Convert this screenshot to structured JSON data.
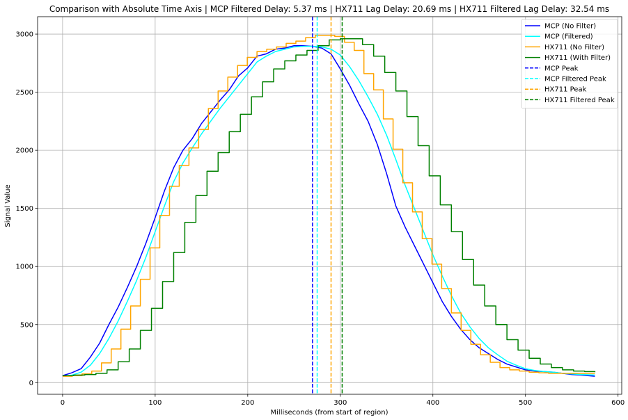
{
  "chart_data": {
    "type": "line",
    "title": "Comparison with Absolute Time Axis | MCP Filtered Delay: 5.37 ms | HX711 Lag Delay: 20.69 ms | HX711 Filtered Lag Delay: 32.54 ms",
    "xlabel": "Milliseconds (from start of region)",
    "ylabel": "Signal Value",
    "xlim": [
      -27,
      604
    ],
    "ylim": [
      -100,
      3150
    ],
    "xticks": [
      0,
      100,
      200,
      300,
      400,
      500,
      600
    ],
    "yticks": [
      0,
      500,
      1000,
      1500,
      2000,
      2500,
      3000
    ],
    "grid": true,
    "legend_position": "top-right",
    "series": [
      {
        "name": "MCP (No Filter)",
        "color": "#0000ff",
        "style": "solid",
        "x": [
          0,
          10,
          20,
          30,
          40,
          50,
          60,
          70,
          80,
          90,
          100,
          110,
          120,
          130,
          140,
          150,
          160,
          170,
          180,
          190,
          200,
          210,
          220,
          230,
          240,
          250,
          260,
          270,
          280,
          290,
          300,
          310,
          320,
          330,
          340,
          350,
          360,
          370,
          380,
          390,
          400,
          410,
          420,
          430,
          440,
          450,
          460,
          470,
          480,
          490,
          500,
          510,
          520,
          530,
          540,
          550,
          560,
          575
        ],
        "y": [
          60,
          85,
          120,
          220,
          340,
          500,
          650,
          820,
          1000,
          1200,
          1420,
          1650,
          1850,
          2000,
          2100,
          2230,
          2330,
          2430,
          2520,
          2640,
          2710,
          2810,
          2830,
          2870,
          2880,
          2900,
          2900,
          2895,
          2880,
          2830,
          2700,
          2560,
          2400,
          2250,
          2050,
          1800,
          1520,
          1340,
          1180,
          1020,
          860,
          700,
          570,
          460,
          370,
          300,
          250,
          200,
          160,
          135,
          110,
          100,
          95,
          90,
          80,
          70,
          65,
          55
        ]
      },
      {
        "name": "MCP (Filtered)",
        "color": "#00ffff",
        "style": "solid",
        "x": [
          0,
          10,
          20,
          30,
          40,
          50,
          60,
          70,
          80,
          90,
          100,
          110,
          120,
          130,
          140,
          150,
          160,
          170,
          180,
          190,
          200,
          210,
          220,
          230,
          240,
          250,
          260,
          270,
          280,
          290,
          300,
          310,
          320,
          330,
          340,
          350,
          360,
          370,
          380,
          390,
          400,
          410,
          420,
          430,
          440,
          450,
          460,
          470,
          480,
          490,
          500,
          510,
          520,
          530,
          540,
          550,
          560,
          575
        ],
        "y": [
          55,
          65,
          90,
          150,
          250,
          380,
          530,
          700,
          880,
          1080,
          1300,
          1520,
          1730,
          1890,
          2020,
          2140,
          2250,
          2360,
          2460,
          2560,
          2660,
          2760,
          2810,
          2850,
          2870,
          2890,
          2895,
          2895,
          2890,
          2870,
          2820,
          2720,
          2600,
          2460,
          2310,
          2130,
          1920,
          1700,
          1500,
          1300,
          1100,
          920,
          750,
          600,
          480,
          380,
          300,
          240,
          185,
          150,
          120,
          105,
          95,
          90,
          80,
          75,
          70,
          65
        ]
      },
      {
        "name": "HX711 (No Filter)",
        "color": "#ffa500",
        "style": "step",
        "x": [
          0,
          10.5,
          21,
          31.5,
          42,
          52.5,
          63,
          73.5,
          84,
          94.5,
          105,
          115.5,
          126,
          136.5,
          147,
          157.5,
          168,
          178.5,
          189,
          199.5,
          210,
          220.5,
          231,
          241.5,
          252,
          262.5,
          273,
          283.5,
          294,
          304.5,
          315,
          325.5,
          336,
          346.5,
          357,
          367.5,
          378,
          388.5,
          399,
          409.5,
          420,
          430.5,
          441,
          451.5,
          462,
          472.5,
          483,
          493.5,
          504,
          514.5,
          525,
          535.5,
          546,
          556.5,
          567,
          575
        ],
        "y": [
          55,
          60,
          75,
          100,
          170,
          290,
          460,
          660,
          890,
          1160,
          1440,
          1690,
          1870,
          2020,
          2180,
          2360,
          2510,
          2630,
          2730,
          2800,
          2850,
          2870,
          2890,
          2920,
          2940,
          2970,
          2990,
          2990,
          2980,
          2930,
          2860,
          2660,
          2520,
          2270,
          2010,
          1720,
          1470,
          1240,
          1020,
          810,
          600,
          450,
          330,
          240,
          175,
          130,
          110,
          100,
          90,
          85,
          80,
          80,
          80,
          80,
          80,
          80
        ]
      },
      {
        "name": "HX711 (With Filter)",
        "color": "#008000",
        "style": "step",
        "x": [
          0,
          12,
          24,
          36,
          48,
          60,
          72,
          84,
          96,
          108,
          120,
          132,
          144,
          156,
          168,
          180,
          192,
          204,
          216,
          228,
          240,
          252,
          264,
          276,
          288,
          300,
          312,
          324,
          336,
          348,
          360,
          372,
          384,
          396,
          408,
          420,
          432,
          444,
          456,
          468,
          480,
          492,
          504,
          516,
          528,
          540,
          552,
          564,
          575
        ],
        "y": [
          60,
          65,
          70,
          80,
          110,
          180,
          290,
          450,
          640,
          870,
          1120,
          1380,
          1610,
          1820,
          1980,
          2160,
          2310,
          2460,
          2590,
          2700,
          2770,
          2820,
          2860,
          2900,
          2950,
          2960,
          2960,
          2910,
          2810,
          2670,
          2510,
          2290,
          2040,
          1780,
          1530,
          1300,
          1060,
          840,
          660,
          500,
          370,
          280,
          210,
          160,
          130,
          110,
          100,
          95,
          90
        ]
      }
    ],
    "vlines": [
      {
        "name": "MCP Peak",
        "x": 270,
        "color": "#0000ff"
      },
      {
        "name": "MCP Filtered Peak",
        "x": 275,
        "color": "#00ffff"
      },
      {
        "name": "HX711 Peak",
        "x": 290,
        "color": "#ffa500"
      },
      {
        "name": "HX711 Filtered Peak",
        "x": 302,
        "color": "#008000"
      }
    ]
  }
}
